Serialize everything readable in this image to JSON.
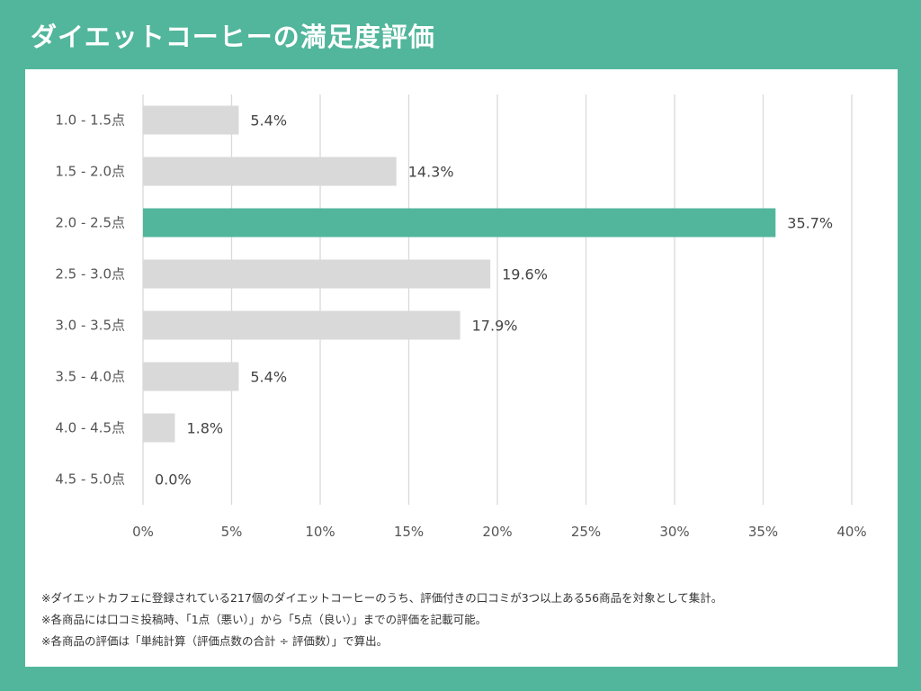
{
  "title": "ダイエットコーヒーの満足度評価",
  "chart_data": {
    "type": "bar",
    "orientation": "horizontal",
    "title": "ダイエットコーヒーの満足度評価",
    "categories": [
      "1.0 - 1.5点",
      "1.5 - 2.0点",
      "2.0 - 2.5点",
      "2.5 - 3.0点",
      "3.0 - 3.5点",
      "3.5 - 4.0点",
      "4.0 - 4.5点",
      "4.5 - 5.0点"
    ],
    "values": [
      5.4,
      14.3,
      35.7,
      19.6,
      17.9,
      5.4,
      1.8,
      0.0
    ],
    "value_labels": [
      "5.4%",
      "14.3%",
      "35.7%",
      "19.6%",
      "17.9%",
      "5.4%",
      "1.8%",
      "0.0%"
    ],
    "x_ticks": [
      "0%",
      "5%",
      "10%",
      "15%",
      "20%",
      "25%",
      "30%",
      "35%",
      "40%"
    ],
    "xlim": [
      0,
      40
    ],
    "xlabel": "",
    "ylabel": "",
    "grid": true,
    "highlight_index": 2,
    "colors": {
      "bar": "#d9d9d9",
      "highlight": "#52b69c",
      "grid": "#d9d9d9"
    }
  },
  "notes": [
    "※ダイエットカフェに登録されている217個のダイエットコーヒーのうち、評価付きの口コミが3つ以上ある56商品を対象として集計。",
    "※各商品には口コミ投稿時、「1点（悪い）」から「5点（良い）」までの評価を記載可能。",
    "※各商品の評価は「単純計算（評価点数の合計 ÷ 評価数）」で算出。"
  ]
}
